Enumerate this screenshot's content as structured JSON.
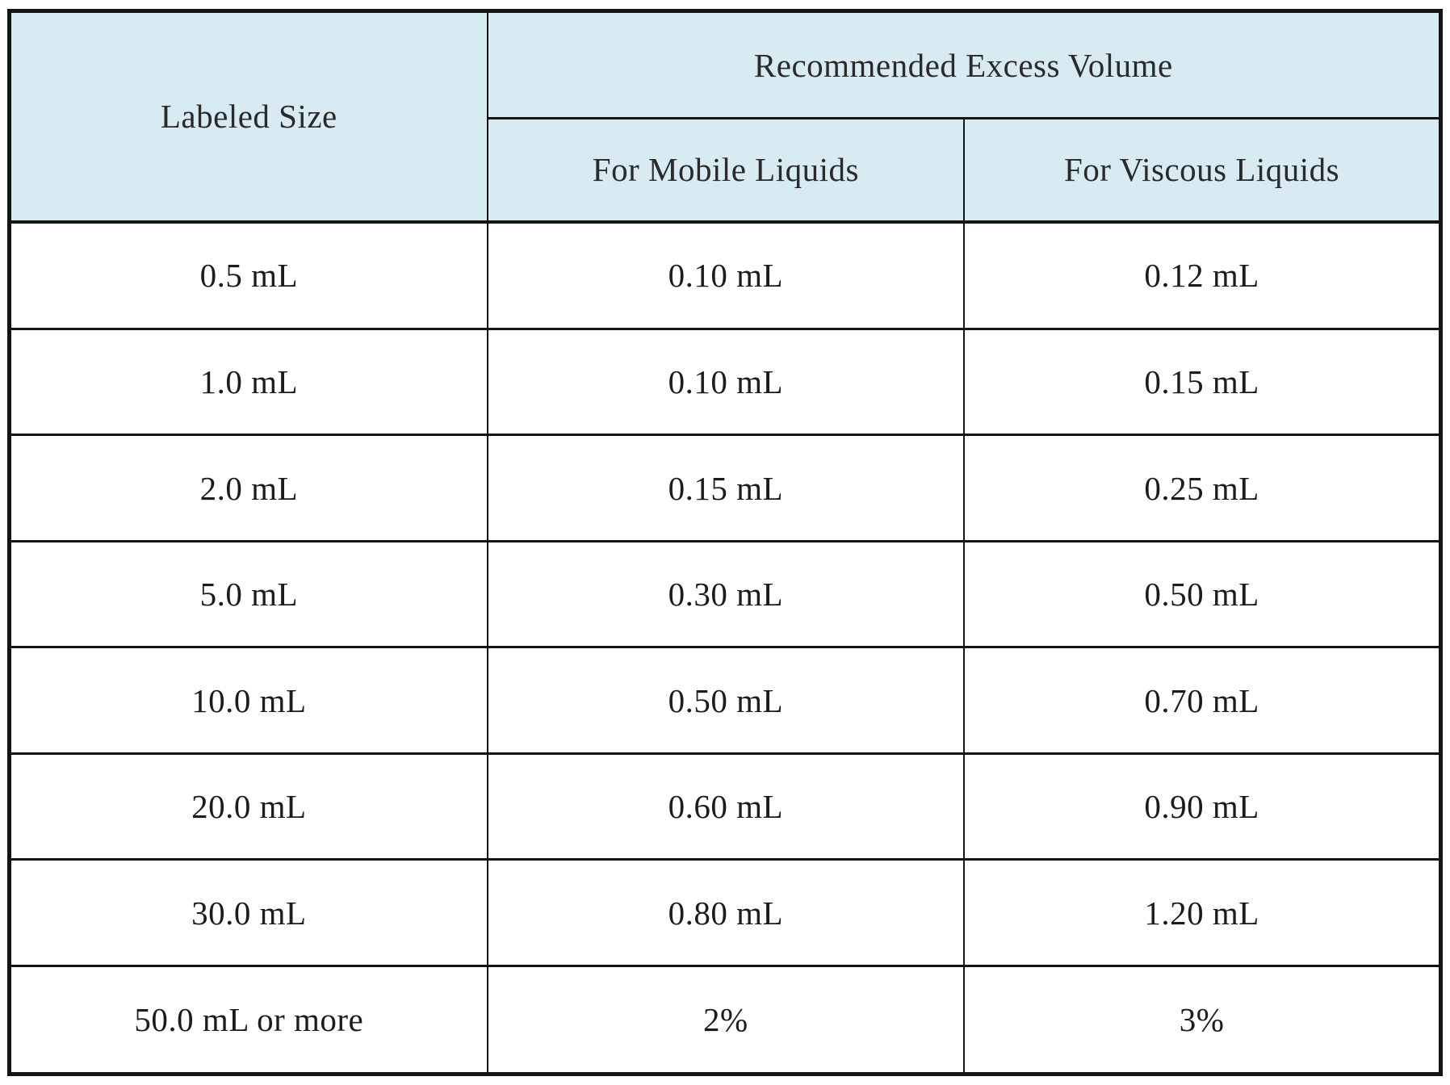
{
  "colors": {
    "header_bg": "#d8ebf2",
    "border": "#141414",
    "text": "#1c1c1c",
    "page_bg": "#ffffff"
  },
  "table": {
    "header": {
      "labeled_size": "Labeled Size",
      "excess_volume_group": "Recommended Excess Volume",
      "mobile_liquids": "For Mobile Liquids",
      "viscous_liquids": "For Viscous Liquids"
    },
    "rows": [
      {
        "size": "0.5 mL",
        "mobile": "0.10 mL",
        "viscous": "0.12 mL"
      },
      {
        "size": "1.0 mL",
        "mobile": "0.10 mL",
        "viscous": "0.15 mL"
      },
      {
        "size": "2.0 mL",
        "mobile": "0.15 mL",
        "viscous": "0.25 mL"
      },
      {
        "size": "5.0 mL",
        "mobile": "0.30 mL",
        "viscous": "0.50 mL"
      },
      {
        "size": "10.0 mL",
        "mobile": "0.50 mL",
        "viscous": "0.70 mL"
      },
      {
        "size": "20.0 mL",
        "mobile": "0.60 mL",
        "viscous": "0.90 mL"
      },
      {
        "size": "30.0 mL",
        "mobile": "0.80 mL",
        "viscous": "1.20 mL"
      },
      {
        "size": "50.0 mL or more",
        "mobile": "2%",
        "viscous": "3%"
      }
    ]
  },
  "chart_data": {
    "type": "table",
    "title": "Recommended Excess Volume",
    "columns": [
      "Labeled Size",
      "For Mobile Liquids",
      "For Viscous Liquids"
    ],
    "rows": [
      [
        "0.5 mL",
        "0.10 mL",
        "0.12 mL"
      ],
      [
        "1.0 mL",
        "0.10 mL",
        "0.15 mL"
      ],
      [
        "2.0 mL",
        "0.15 mL",
        "0.25 mL"
      ],
      [
        "5.0 mL",
        "0.30 mL",
        "0.50 mL"
      ],
      [
        "10.0 mL",
        "0.50 mL",
        "0.70 mL"
      ],
      [
        "20.0 mL",
        "0.60 mL",
        "0.90 mL"
      ],
      [
        "30.0 mL",
        "0.80 mL",
        "1.20 mL"
      ],
      [
        "50.0 mL or more",
        "2%",
        "3%"
      ]
    ]
  }
}
